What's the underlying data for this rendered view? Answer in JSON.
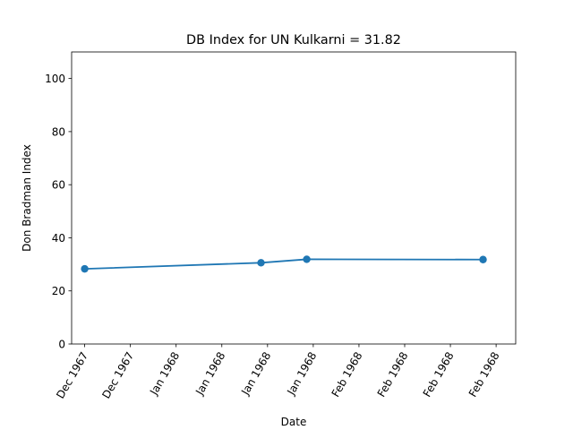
{
  "chart_data": {
    "type": "line",
    "title": "DB Index for UN Kulkarni = 31.82",
    "xlabel": "Date",
    "ylabel": "Don Bradman Index",
    "ylim": [
      0,
      110
    ],
    "y_ticks": [
      0,
      20,
      40,
      60,
      80,
      100
    ],
    "x_tick_labels": [
      "Dec 1967",
      "Dec 1967",
      "Jan 1968",
      "Jan 1968",
      "Jan 1968",
      "Jan 1968",
      "Feb 1968",
      "Feb 1968",
      "Feb 1968",
      "Feb 1968"
    ],
    "x_ticks": [
      "1967-12-15",
      "1967-12-22",
      "1967-12-29",
      "1968-01-05",
      "1968-01-12",
      "1968-01-19",
      "1968-01-26",
      "1968-02-02",
      "1968-02-09",
      "1968-02-16"
    ],
    "xlim": [
      "1967-12-13",
      "1968-02-19"
    ],
    "grid": false,
    "series": [
      {
        "color": "#1f77b4",
        "x": [
          "1967-12-15",
          "1968-01-11",
          "1968-01-18",
          "1968-02-14"
        ],
        "y": [
          28.3,
          30.6,
          31.9,
          31.8
        ]
      }
    ]
  }
}
